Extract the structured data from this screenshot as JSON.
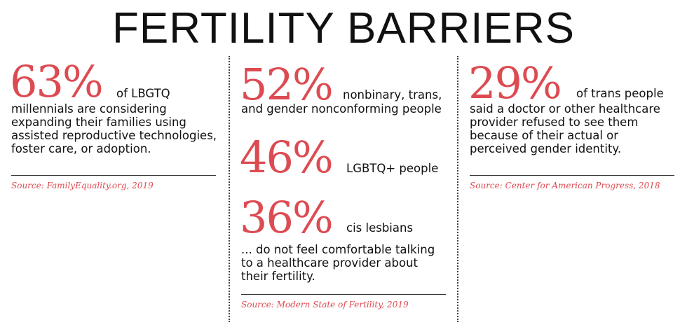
{
  "title": "FERTILITY BARRIERS",
  "columns": [
    {
      "stats": [
        {
          "value": "63%",
          "label": "of LBGTQ"
        }
      ],
      "body_lines": [
        "millennials are considering",
        "expanding their families using",
        "assisted reproductive technologies,",
        "foster care, or adoption."
      ],
      "source": "Source: FamilyEquality.org, 2019"
    },
    {
      "stats": [
        {
          "value": "52%",
          "label": "nonbinary, trans,",
          "label2": "and gender nonconforming people"
        },
        {
          "value": "46%",
          "label": "LGBTQ+ people"
        },
        {
          "value": "36%",
          "label": "cis lesbians"
        }
      ],
      "body_lines": [
        "... do not feel comfortable talking",
        "to a healthcare provider about",
        "their fertility."
      ],
      "source": "Source: Modern State of Fertility, 2019"
    },
    {
      "stats": [
        {
          "value": "29%",
          "label": "of trans people"
        }
      ],
      "body_lines": [
        "said a doctor or other healthcare",
        "provider refused to see them",
        "because of their actual or",
        "perceived gender identity."
      ],
      "source": "Source: Center for American Progress, 2018"
    }
  ],
  "colors": {
    "accent": "#dd4b52",
    "text": "#111111"
  }
}
